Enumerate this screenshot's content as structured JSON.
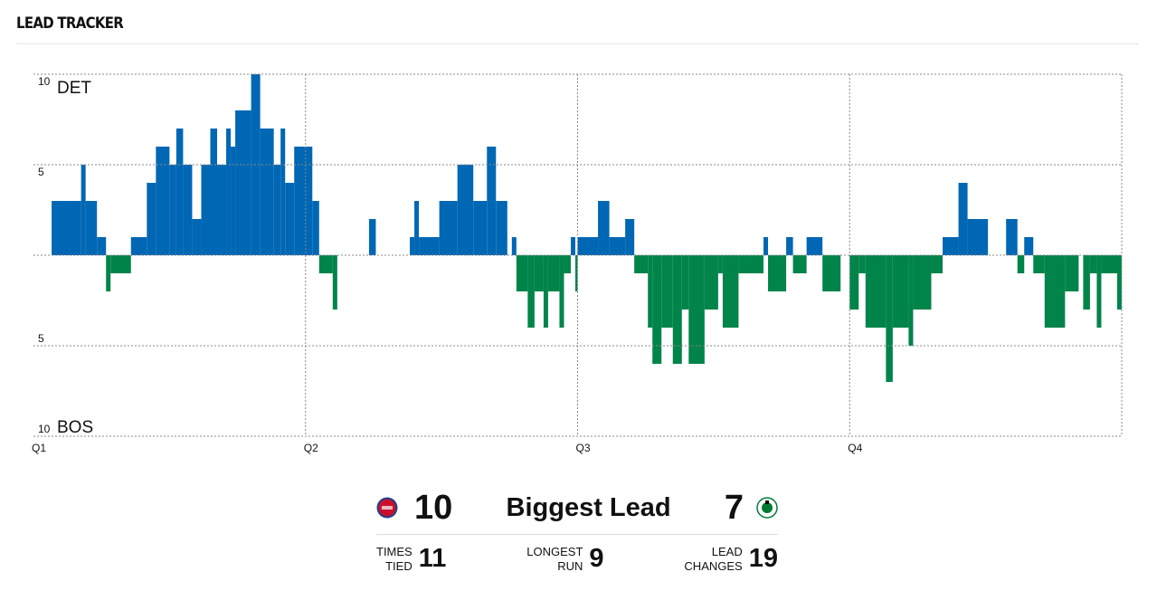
{
  "header": {
    "title": "LEAD TRACKER"
  },
  "chart_data": {
    "type": "step-area",
    "x_unit": "game minutes",
    "xlim": [
      0,
      48
    ],
    "ylim": [
      -10,
      10
    ],
    "x_ticks": [
      {
        "label": "Q1",
        "value": 0
      },
      {
        "label": "Q2",
        "value": 12
      },
      {
        "label": "Q3",
        "value": 24
      },
      {
        "label": "Q4",
        "value": 36
      }
    ],
    "y_ticks": [
      {
        "label": "10",
        "value": 10
      },
      {
        "label": "5",
        "value": 5
      },
      {
        "label": "5",
        "value": -5
      },
      {
        "label": "10",
        "value": -10
      }
    ],
    "top_team": "DET",
    "bottom_team": "BOS",
    "grid": true,
    "colors": {
      "DET": "#0067b4",
      "BOS": "#00844a"
    },
    "segments": [
      [
        0,
        0
      ],
      [
        0.8,
        3
      ],
      [
        2.1,
        5
      ],
      [
        2.3,
        3
      ],
      [
        2.8,
        1
      ],
      [
        3.2,
        -2
      ],
      [
        3.4,
        -1
      ],
      [
        4.3,
        1
      ],
      [
        5.0,
        4
      ],
      [
        5.4,
        6
      ],
      [
        6.0,
        5
      ],
      [
        6.3,
        7
      ],
      [
        6.6,
        5
      ],
      [
        7.0,
        2
      ],
      [
        7.4,
        5
      ],
      [
        7.8,
        7
      ],
      [
        8.1,
        5
      ],
      [
        8.5,
        7
      ],
      [
        8.7,
        6
      ],
      [
        8.9,
        8
      ],
      [
        9.6,
        10
      ],
      [
        10.0,
        7
      ],
      [
        10.6,
        5
      ],
      [
        10.9,
        7
      ],
      [
        11.1,
        4
      ],
      [
        11.5,
        6
      ],
      [
        12.3,
        3
      ],
      [
        12.6,
        -1
      ],
      [
        13.2,
        -3
      ],
      [
        13.4,
        0
      ],
      [
        14.8,
        2
      ],
      [
        15.1,
        0
      ],
      [
        16.6,
        1
      ],
      [
        16.8,
        3
      ],
      [
        17.0,
        1
      ],
      [
        17.9,
        3
      ],
      [
        18.7,
        5
      ],
      [
        19.4,
        3
      ],
      [
        20.0,
        6
      ],
      [
        20.4,
        3
      ],
      [
        20.9,
        0
      ],
      [
        21.1,
        1
      ],
      [
        21.3,
        -2
      ],
      [
        21.8,
        -4
      ],
      [
        22.1,
        -2
      ],
      [
        22.5,
        -4
      ],
      [
        22.7,
        -2
      ],
      [
        23.2,
        -4
      ],
      [
        23.4,
        -1
      ],
      [
        23.7,
        1
      ],
      [
        23.9,
        -2
      ],
      [
        24.0,
        1
      ],
      [
        24.9,
        3
      ],
      [
        25.4,
        1
      ],
      [
        26.1,
        2
      ],
      [
        26.5,
        -1
      ],
      [
        27.1,
        -4
      ],
      [
        27.3,
        -6
      ],
      [
        27.7,
        -4
      ],
      [
        28.2,
        -6
      ],
      [
        28.6,
        -3
      ],
      [
        28.9,
        -6
      ],
      [
        29.6,
        -3
      ],
      [
        30.2,
        -1
      ],
      [
        30.4,
        -4
      ],
      [
        31.1,
        -1
      ],
      [
        32.2,
        1
      ],
      [
        32.4,
        -2
      ],
      [
        33.2,
        1
      ],
      [
        33.5,
        -1
      ],
      [
        34.1,
        1
      ],
      [
        34.8,
        -2
      ],
      [
        35.6,
        0
      ],
      [
        36.0,
        -3
      ],
      [
        36.4,
        -1
      ],
      [
        36.7,
        -4
      ],
      [
        37.6,
        -7
      ],
      [
        37.9,
        -4
      ],
      [
        38.6,
        -5
      ],
      [
        38.8,
        -3
      ],
      [
        39.6,
        -1
      ],
      [
        40.1,
        1
      ],
      [
        40.8,
        4
      ],
      [
        41.2,
        2
      ],
      [
        42.1,
        0
      ],
      [
        42.9,
        2
      ],
      [
        43.4,
        -1
      ],
      [
        43.7,
        1
      ],
      [
        44.1,
        -1
      ],
      [
        44.6,
        -4
      ],
      [
        45.5,
        -2
      ],
      [
        46.1,
        0
      ],
      [
        46.3,
        -3
      ],
      [
        46.6,
        -1
      ],
      [
        46.9,
        -4
      ],
      [
        47.1,
        -1
      ],
      [
        47.8,
        -3
      ]
    ]
  },
  "stats": {
    "det_biggest_lead": "10",
    "biggest_lead_label": "Biggest Lead",
    "bos_biggest_lead": "7",
    "times_tied_label_1": "TIMES",
    "times_tied_label_2": "TIED",
    "times_tied": "11",
    "longest_run_label_1": "LONGEST",
    "longest_run_label_2": "RUN",
    "longest_run": "9",
    "lead_changes_label_1": "LEAD",
    "lead_changes_label_2": "CHANGES",
    "lead_changes": "19"
  }
}
